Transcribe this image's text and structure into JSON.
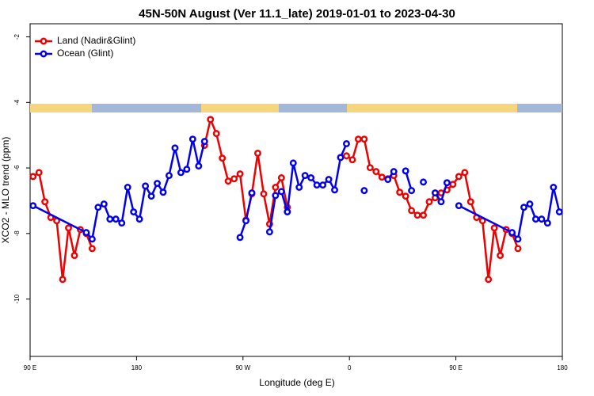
{
  "chart_data": {
    "type": "line",
    "title": "45N-50N August (Ver 11.1_late)   2019-01-01 to 2023-04-30",
    "x_label": "Longitude (deg E)",
    "y_label": "XCO2 - MLO trend (ppm)",
    "xlim": [
      90,
      540
    ],
    "xticks": [
      {
        "value": 90,
        "label": "90 E"
      },
      180,
      {
        "value": 270,
        "label": "90 W"
      },
      {
        "value": 360,
        "label": "0"
      },
      {
        "value": 450,
        "label": "90 E"
      },
      {
        "value": 540,
        "label": "180"
      }
    ],
    "ylim": [
      -11.75,
      -1.6
    ],
    "yticks": [
      -2,
      -4,
      -6,
      -8,
      -10
    ],
    "legend": "top-left",
    "series": [
      {
        "name": "Land (Nadir&Glint)",
        "color": "#ee0000",
        "x": [
          92.5,
          97.5,
          102.5,
          107.5,
          112.5,
          117.5,
          122.5,
          127.5,
          132.5,
          137.5,
          142.5,
          147.5,
          237.5,
          242.5,
          247.5,
          252.5,
          257.5,
          262.5,
          267.5,
          272.5,
          277.5,
          282.5,
          287.5,
          292.5,
          297.5,
          302.5,
          307.5,
          312.5,
          357.5,
          362.5,
          367.5,
          372.5,
          377.5,
          382.5,
          387.5,
          392.5,
          397.5,
          402.5,
          407.5,
          412.5,
          417.5,
          422.5,
          427.5,
          432.5,
          437.5,
          442.5,
          447.5,
          452.5,
          457.5,
          462.5,
          467.5,
          472.5,
          477.5,
          482.5,
          487.5,
          492.5,
          497.5,
          502.5
        ],
        "values": [
          -6.26,
          -6.14,
          -7.03,
          -7.51,
          -7.61,
          -9.4,
          -7.83,
          -8.67,
          -7.88,
          -8.0,
          -8.46,
          null,
          -5.31,
          -4.52,
          -4.95,
          -5.7,
          -6.4,
          -6.33,
          -6.18,
          -7.59,
          -6.79,
          -5.55,
          -6.79,
          -7.71,
          -6.59,
          -6.3,
          -7.2,
          null,
          -5.63,
          -5.75,
          -5.12,
          -5.12,
          -5.99,
          -6.11,
          -6.28,
          -6.33,
          -6.23,
          -6.74,
          -6.86,
          -7.3,
          -7.44,
          -7.44,
          -7.03,
          -6.91,
          -6.76,
          -6.67,
          -6.5,
          -6.26,
          -6.14,
          -7.03,
          -7.51,
          -7.61,
          -9.4,
          -7.83,
          -8.67,
          -7.88,
          -8.0,
          -8.46
        ]
      },
      {
        "name": "Ocean (Glint)",
        "color": "#0000ee",
        "x": [
          92.5,
          137.5,
          142.5,
          147.5,
          152.5,
          157.5,
          162.5,
          167.5,
          172.5,
          177.5,
          182.5,
          187.5,
          192.5,
          197.5,
          202.5,
          207.5,
          212.5,
          217.5,
          222.5,
          227.5,
          232.5,
          237.5,
          242.5,
          267.5,
          272.5,
          277.5,
          282.5,
          292.5,
          297.5,
          302.5,
          307.5,
          312.5,
          317.5,
          322.5,
          327.5,
          332.5,
          337.5,
          342.5,
          347.5,
          352.5,
          357.5,
          362.5,
          372.5,
          377.5,
          392.5,
          397.5,
          402.5,
          407.5,
          412.5,
          417.5,
          422.5,
          427.5,
          432.5,
          437.5,
          442.5,
          447.5,
          452.5,
          497.5,
          502.5,
          507.5,
          512.5,
          517.5,
          522.5,
          527.5,
          532.5,
          537.5
        ],
        "values": [
          -7.15,
          -7.97,
          -8.17,
          -7.2,
          -7.1,
          -7.56,
          -7.56,
          -7.68,
          -6.59,
          -7.34,
          -7.56,
          -6.55,
          -6.86,
          -6.47,
          -6.74,
          -6.23,
          -5.39,
          -6.14,
          -6.04,
          -5.12,
          -5.94,
          -5.19,
          null,
          -8.12,
          -7.61,
          -6.76,
          null,
          -7.95,
          -6.84,
          -6.72,
          -7.34,
          -5.85,
          -6.59,
          -6.23,
          -6.3,
          -6.52,
          -6.52,
          -6.35,
          -6.67,
          -5.68,
          -5.26,
          null,
          -6.69,
          null,
          -6.35,
          -6.11,
          null,
          -6.09,
          -6.69,
          null,
          -6.43,
          null,
          -6.76,
          -7.03,
          -6.45,
          null,
          -7.15,
          -7.97,
          -8.17,
          -7.2,
          -7.1,
          -7.56,
          -7.56,
          -7.68,
          -6.59,
          -7.34
        ]
      }
    ]
  }
}
